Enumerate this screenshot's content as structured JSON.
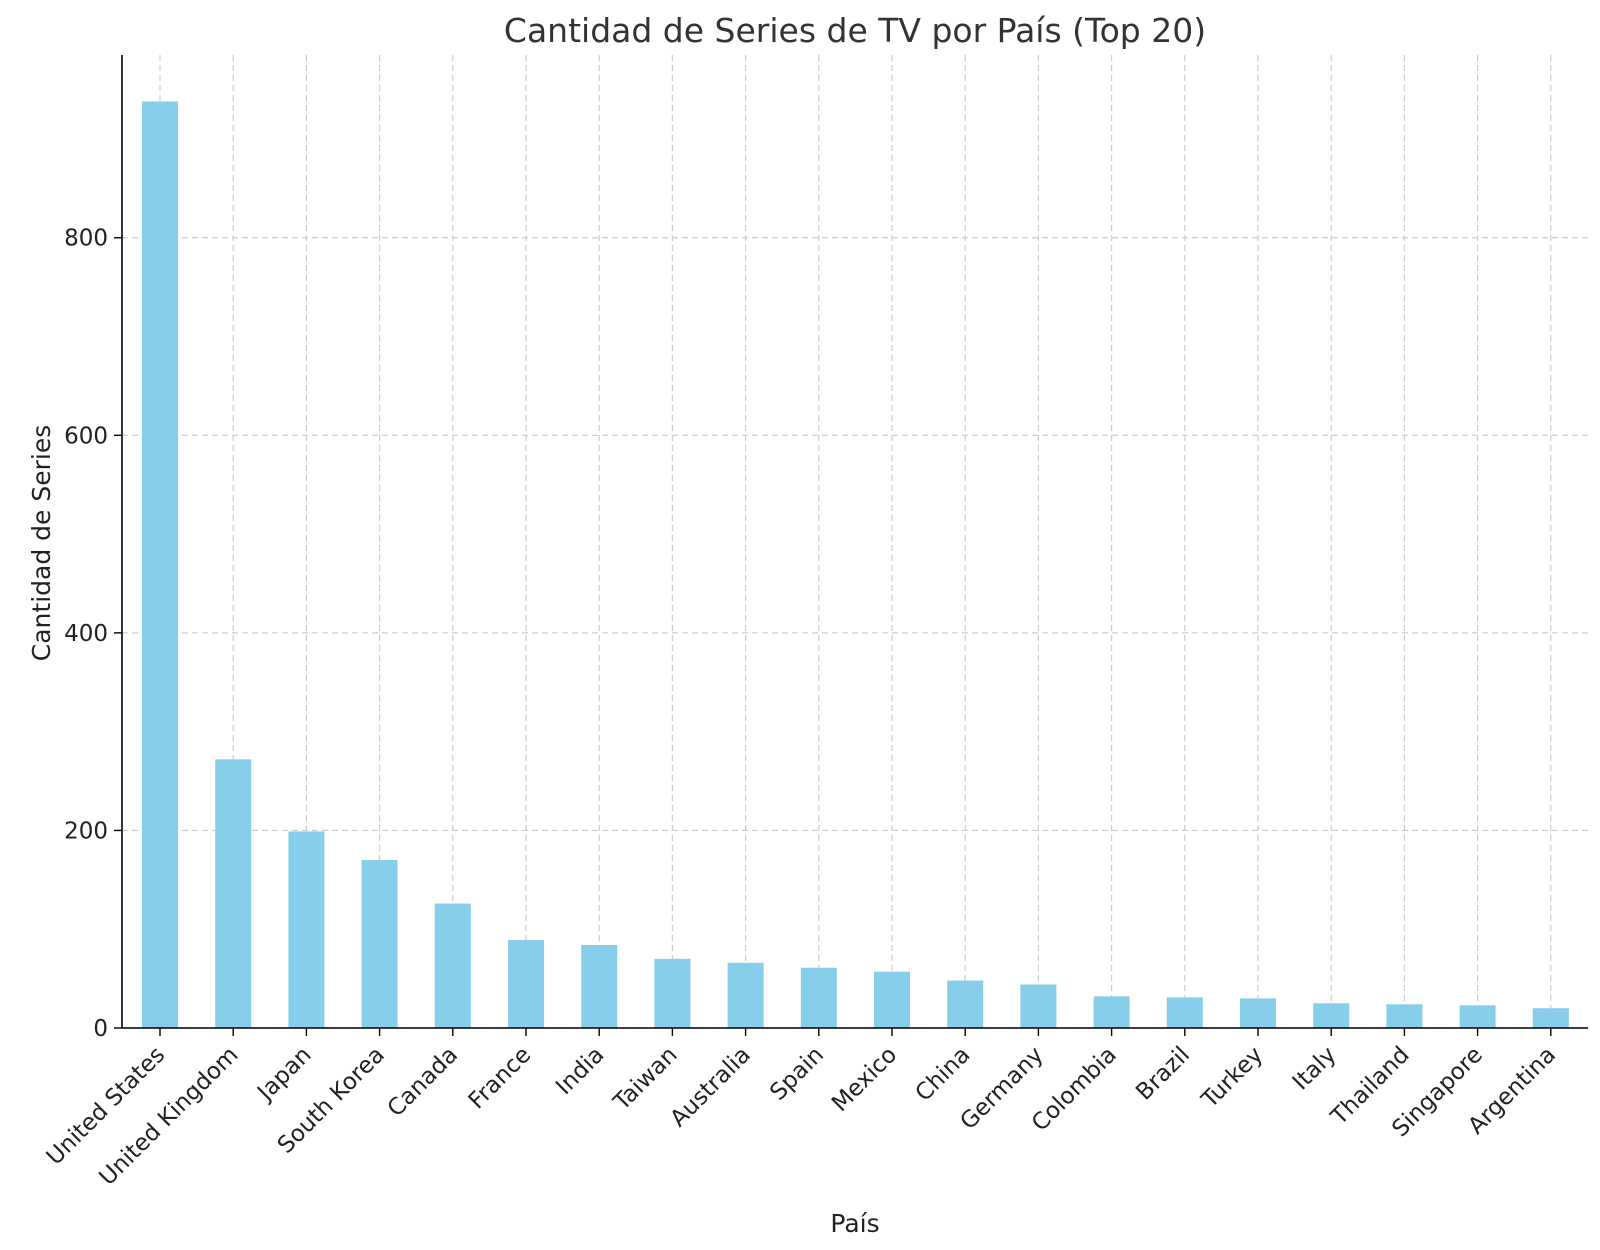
{
  "chart_data": {
    "type": "bar",
    "title": "Cantidad de Series de TV por País (Top 20)",
    "xlabel": "País",
    "ylabel": "Cantidad de Series",
    "categories": [
      "United States",
      "United Kingdom",
      "Japan",
      "South Korea",
      "Canada",
      "France",
      "India",
      "Taiwan",
      "Australia",
      "Spain",
      "Mexico",
      "China",
      "Germany",
      "Colombia",
      "Brazil",
      "Turkey",
      "Italy",
      "Thailand",
      "Singapore",
      "Argentina"
    ],
    "values": [
      938,
      272,
      199,
      170,
      126,
      89,
      84,
      70,
      66,
      61,
      57,
      48,
      44,
      32,
      31,
      30,
      25,
      24,
      23,
      20
    ],
    "ylim": [
      0,
      985
    ],
    "yticks": [
      0,
      200,
      400,
      600,
      800
    ],
    "grid": true,
    "bar_color": "#87ceeb",
    "grid_color": "#cccccc"
  }
}
